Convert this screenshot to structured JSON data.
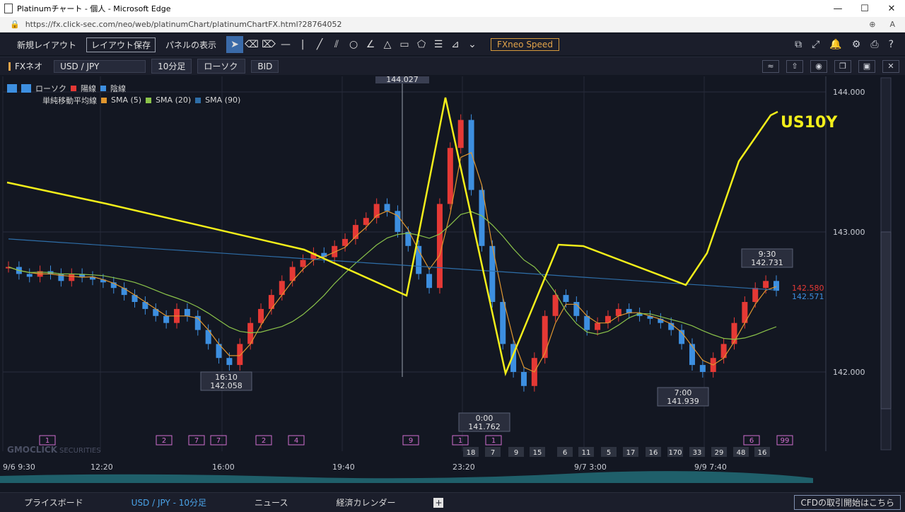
{
  "window": {
    "title": "Platinumチャート - 個人 - Microsoft Edge",
    "url": "https://fx.click-sec.com/neo/web/platinumChart/platinumChartFX.html?28764052",
    "btn_min": "—",
    "btn_max": "☐",
    "btn_close": "✕"
  },
  "toolbar": {
    "new_layout": "新規レイアウト",
    "save_layout": "レイアウト保存",
    "panel_display": "パネルの表示",
    "speed": "FXneo Speed"
  },
  "subbar": {
    "product": "FXネオ",
    "pair": "USD / JPY",
    "interval": "10分足",
    "chart_type": "ローソク",
    "price_type": "BID"
  },
  "legend": {
    "candle_label": "ローソク",
    "up_label": "陽線",
    "down_label": "陰線",
    "sma_label": "単純移動平均線",
    "sma5": "SMA (5)",
    "sma20": "SMA (20)",
    "sma90": "SMA (90)"
  },
  "colors": {
    "up": "#e53935",
    "down": "#3d8fe0",
    "sma5": "#e0962e",
    "sma20": "#8bc34a",
    "sma90": "#2e6ea8",
    "annotation": "#f2ee1a",
    "event_box": "#d26fd0"
  },
  "chart_data": {
    "type": "candlestick",
    "pair": "USD/JPY",
    "interval": "10分足",
    "y_ticks": [
      "144.000",
      "143.000",
      "142.000"
    ],
    "ylim": [
      141.5,
      144.1
    ],
    "x_ticks": [
      "9/6 9:30",
      "12:20",
      "16:00",
      "19:40",
      "23:20",
      "9/7 3:00",
      "9/9 7:40"
    ],
    "crosshair_price": "144.027",
    "current_bid": "142.580",
    "current_ask": "142.571",
    "price_callouts": [
      {
        "time": "16:10",
        "price": "142.058"
      },
      {
        "time": "0:00",
        "price": "141.762"
      },
      {
        "time": "7:00",
        "price": "141.939"
      },
      {
        "time": "9:30",
        "price": "142.731"
      }
    ],
    "annotation_text": "US10Y",
    "event_markers_top": [
      "1",
      "2",
      "7",
      "7",
      "2",
      "4",
      "9",
      "1",
      "1",
      "6",
      "99"
    ],
    "event_markers_bottom": [
      "18",
      "7",
      "9",
      "15",
      "6",
      "11",
      "5",
      "17",
      "16",
      "170",
      "33",
      "29",
      "48",
      "16"
    ]
  },
  "brand": "GMOCLICK",
  "brand_sub": "SECURITIES",
  "bottom": {
    "price_board": "プライスボード",
    "active_tab": "USD / JPY - 10分足",
    "news": "ニュース",
    "calendar": "経済カレンダー",
    "plus": "+",
    "cfd": "CFDの取引開始はこちら"
  }
}
